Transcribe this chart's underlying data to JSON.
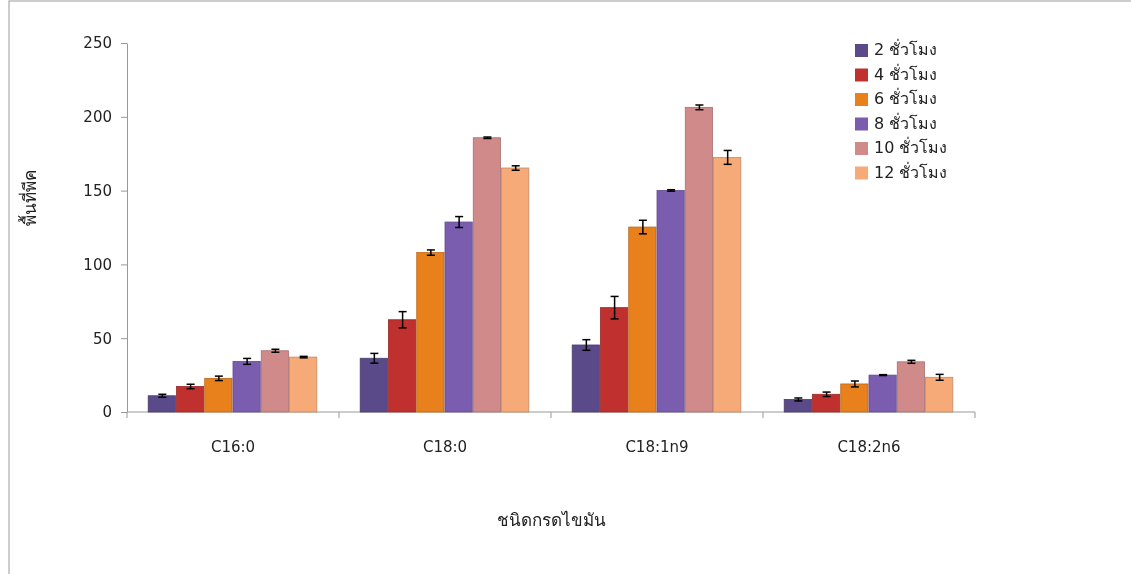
{
  "chart_data": {
    "type": "bar",
    "xlabel": "ชนิดกรดไขมัน",
    "ylabel": "พื้นที่พีค",
    "categories": [
      "C16:0",
      "C18:0",
      "C18:1n9",
      "C18:2n6"
    ],
    "series": [
      {
        "name": "2 ชั่วโมง",
        "color": "#5b4a8a",
        "values": [
          11,
          36.4,
          45.4,
          8.5
        ],
        "errors": [
          1,
          3.3,
          3.6,
          1
        ]
      },
      {
        "name": "4 ชั่วโมง",
        "color": "#c0302f",
        "values": [
          17.3,
          62.5,
          70.7,
          12
        ],
        "errors": [
          1.5,
          5.5,
          7.6,
          1.5
        ]
      },
      {
        "name": "6 ชั่วโมง",
        "color": "#e8801c",
        "values": [
          22.8,
          108,
          125.3,
          19
        ],
        "errors": [
          1.5,
          1.8,
          4.6,
          2
        ]
      },
      {
        "name": "8 ชั่วโมง",
        "color": "#7b5db0",
        "values": [
          34.3,
          128.7,
          150.1,
          25
        ],
        "errors": [
          2,
          3.7,
          0.5,
          0.3
        ]
      },
      {
        "name": "10 ชั่วโมง",
        "color": "#d08a8a",
        "values": [
          41.5,
          185.8,
          206.4,
          34
        ],
        "errors": [
          1,
          0.5,
          1.6,
          1
        ]
      },
      {
        "name": "12 ชั่วโมง",
        "color": "#f5aa78",
        "values": [
          37.2,
          165.3,
          172.5,
          23.5
        ],
        "errors": [
          0.5,
          1.5,
          4.7,
          2
        ]
      }
    ],
    "ylim": [
      0,
      250
    ],
    "yticks": [
      0,
      50,
      100,
      150,
      200,
      250
    ],
    "grid": false,
    "legend": "top right"
  }
}
